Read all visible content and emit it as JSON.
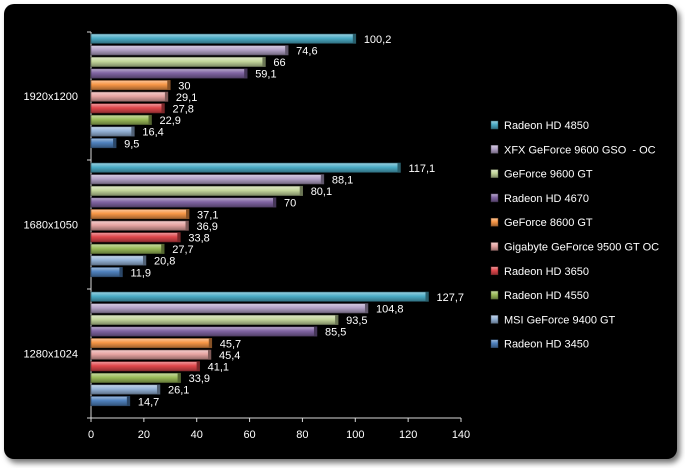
{
  "chart_data": {
    "type": "bar",
    "orientation": "horizontal",
    "categories": [
      "1920x1200",
      "1680x1050",
      "1280x1024"
    ],
    "xlim": [
      0,
      140
    ],
    "xticks": [
      0,
      20,
      40,
      60,
      80,
      100,
      120,
      140
    ],
    "grid": false,
    "legend_position": "right",
    "series": [
      {
        "name": "Radeon HD 4850",
        "color": "#4bacc6",
        "values": [
          100.2,
          117.1,
          127.7
        ],
        "labels": [
          "100,2",
          "117,1",
          "127,7"
        ]
      },
      {
        "name": "XFX GeForce 9600 GSO  - OC",
        "color": "#b3a2c7",
        "values": [
          74.6,
          88.1,
          104.8
        ],
        "labels": [
          "74,6",
          "88,1",
          "104,8"
        ]
      },
      {
        "name": "GeForce 9600 GT",
        "color": "#c3d69b",
        "values": [
          66,
          80.1,
          93.5
        ],
        "labels": [
          "66",
          "80,1",
          "93,5"
        ]
      },
      {
        "name": "Radeon HD 4670",
        "color": "#8064a2",
        "values": [
          59.1,
          70,
          85.5
        ],
        "labels": [
          "59,1",
          "70",
          "85,5"
        ]
      },
      {
        "name": "GeForce 8600 GT",
        "color": "#f79646",
        "values": [
          30,
          37.1,
          45.7
        ],
        "labels": [
          "30",
          "37,1",
          "45,7"
        ]
      },
      {
        "name": "Gigabyte GeForce 9500 GT OC",
        "color": "#e6a4a2",
        "values": [
          29.1,
          36.9,
          45.4
        ],
        "labels": [
          "29,1",
          "36,9",
          "45,4"
        ]
      },
      {
        "name": "Radeon HD 3650",
        "color": "#e0474c",
        "values": [
          27.8,
          33.8,
          41.1
        ],
        "labels": [
          "27,8",
          "33,8",
          "41,1"
        ]
      },
      {
        "name": "Radeon HD 4550",
        "color": "#9bbb59",
        "values": [
          22.9,
          27.7,
          33.9
        ],
        "labels": [
          "22,9",
          "27,7",
          "33,9"
        ]
      },
      {
        "name": "MSI GeForce 9400 GT",
        "color": "#95b3d7",
        "values": [
          16.4,
          20.8,
          26.1
        ],
        "labels": [
          "16,4",
          "20,8",
          "26,1"
        ]
      },
      {
        "name": "Radeon HD 3450",
        "color": "#4f81bd",
        "values": [
          9.5,
          11.9,
          14.7
        ],
        "labels": [
          "9,5",
          "11,9",
          "14,7"
        ]
      }
    ]
  }
}
